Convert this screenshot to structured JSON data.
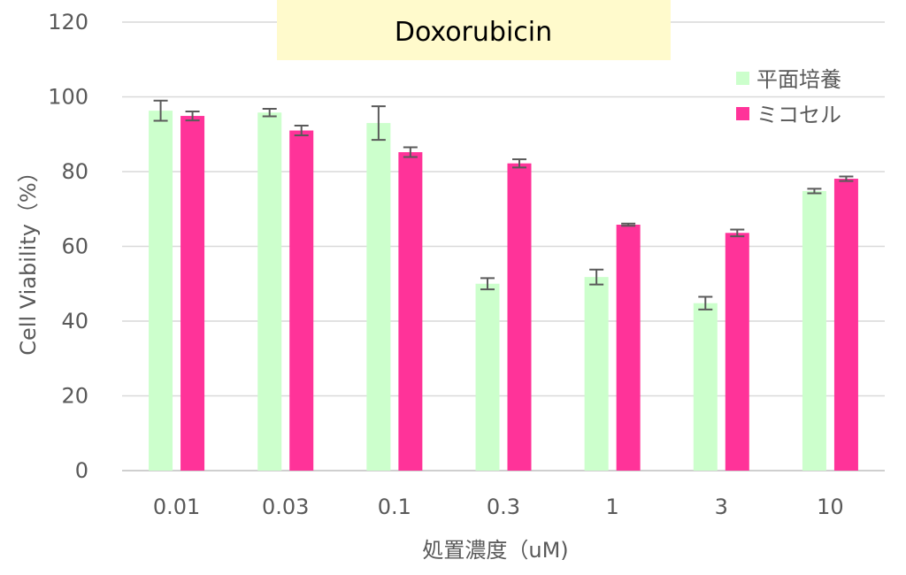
{
  "chart_data": {
    "type": "bar",
    "title": "Doxorubicin",
    "xlabel": "処置濃度（uM)",
    "ylabel": "Cell Viability（%）",
    "ylim": [
      0,
      120
    ],
    "yticks": [
      0,
      20,
      40,
      60,
      80,
      100,
      120
    ],
    "categories": [
      "0.01",
      "0.03",
      "0.1",
      "0.3",
      "1",
      "3",
      "10"
    ],
    "series": [
      {
        "name": "平面培養",
        "color": "#ccffcc",
        "values": [
          96.3,
          95.8,
          93.0,
          50.0,
          51.8,
          44.8,
          74.8
        ],
        "error": [
          2.7,
          1.0,
          4.5,
          1.5,
          2.0,
          1.7,
          0.6
        ]
      },
      {
        "name": "ミコセル",
        "color": "#ff3399",
        "values": [
          94.9,
          91.0,
          85.2,
          82.2,
          65.8,
          63.6,
          78.1
        ],
        "error": [
          1.2,
          1.3,
          1.3,
          1.1,
          0.3,
          0.9,
          0.6
        ]
      }
    ],
    "grid": true,
    "legend_position": "top-right",
    "title_box_color": "#fffacc"
  }
}
